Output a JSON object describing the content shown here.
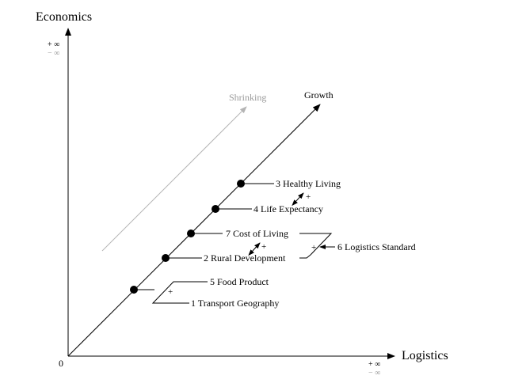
{
  "axes": {
    "y_title": "Economics",
    "x_title": "Logistics",
    "origin": "0",
    "y_pos_inf": "+ ∞",
    "y_neg_inf": "− ∞",
    "x_pos_inf": "+ ∞",
    "x_neg_inf": "− ∞"
  },
  "lines": {
    "growth": "Growth",
    "shrinking": "Shrinking"
  },
  "nodes": [
    {
      "id": "3",
      "label": "3 Healthy Living"
    },
    {
      "id": "4",
      "label": "4 Life Expectancy"
    },
    {
      "id": "7",
      "label": "7 Cost of Living"
    },
    {
      "id": "2",
      "label": "2 Rural Development"
    },
    {
      "id": "6",
      "label": "6 Logistics Standard"
    },
    {
      "id": "5",
      "label": "5 Food Product"
    },
    {
      "id": "1",
      "label": "1 Transport Geography"
    }
  ],
  "signs": {
    "link_3_4": "+",
    "link_7_2": "+",
    "link_6": "+",
    "link_5_1": "+"
  },
  "colors": {
    "ink": "#000000",
    "shrinking": "#b4b4b4",
    "infinity_negative": "#999999"
  }
}
